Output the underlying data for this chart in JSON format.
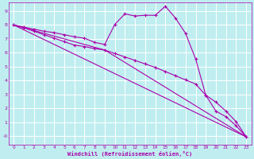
{
  "bg_color": "#c0eef0",
  "line_color": "#aa00aa",
  "grid_color": "#ffffff",
  "xlabel": "Windchill (Refroidissement éolien,°C)",
  "xlim": [
    -0.5,
    23.5
  ],
  "ylim": [
    -0.6,
    9.6
  ],
  "xticks": [
    0,
    1,
    2,
    3,
    4,
    5,
    6,
    7,
    8,
    9,
    10,
    11,
    12,
    13,
    14,
    15,
    16,
    17,
    18,
    19,
    20,
    21,
    22,
    23
  ],
  "yticks": [
    0,
    1,
    2,
    3,
    4,
    5,
    6,
    7,
    8,
    9
  ],
  "ytick_labels": [
    "-0",
    "1",
    "2",
    "3",
    "4",
    "5",
    "6",
    "7",
    "8",
    "9"
  ],
  "line1_x": [
    0,
    1,
    2,
    3,
    4,
    5,
    6,
    7,
    8,
    9,
    10,
    11,
    12,
    13,
    14,
    15,
    16,
    17,
    18,
    19,
    20,
    21,
    22,
    23
  ],
  "line1_y": [
    8.0,
    7.85,
    7.7,
    7.55,
    7.45,
    7.3,
    7.15,
    7.05,
    6.75,
    6.6,
    8.05,
    8.8,
    8.65,
    8.7,
    8.7,
    9.35,
    8.5,
    7.4,
    5.55,
    2.95,
    1.8,
    1.4,
    0.75,
    -0.05
  ],
  "line2_x": [
    0,
    1,
    2,
    3,
    4,
    5,
    6,
    7,
    8,
    9,
    10,
    11,
    12,
    13,
    14,
    15,
    16,
    17,
    18,
    19,
    20,
    21,
    22,
    23
  ],
  "line2_y": [
    8.0,
    7.8,
    7.55,
    7.3,
    7.05,
    6.8,
    6.55,
    6.45,
    6.3,
    6.2,
    5.95,
    5.7,
    5.45,
    5.2,
    4.95,
    4.65,
    4.35,
    4.05,
    3.75,
    2.95,
    2.45,
    1.8,
    1.05,
    -0.05
  ],
  "line3_x": [
    0,
    23
  ],
  "line3_y": [
    8.0,
    -0.05
  ],
  "line4_x": [
    0,
    9,
    23
  ],
  "line4_y": [
    8.0,
    6.2,
    -0.05
  ]
}
